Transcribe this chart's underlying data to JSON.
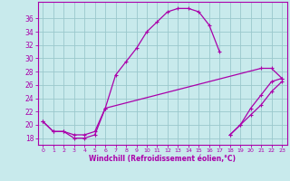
{
  "xlabel": "Windchill (Refroidissement éolien,°C)",
  "xlim": [
    -0.5,
    23.5
  ],
  "ylim": [
    17.0,
    38.5
  ],
  "yticks": [
    18,
    20,
    22,
    24,
    26,
    28,
    30,
    32,
    34,
    36
  ],
  "xticks": [
    0,
    1,
    2,
    3,
    4,
    5,
    6,
    7,
    8,
    9,
    10,
    11,
    12,
    13,
    14,
    15,
    16,
    17,
    18,
    19,
    20,
    21,
    22,
    23
  ],
  "background_color": "#c8eaec",
  "grid_color": "#9ac8cc",
  "line_color": "#aa00aa",
  "series": [
    [
      20.5,
      19.0,
      19.0,
      18.0,
      18.0,
      18.5,
      22.5,
      27.5,
      29.5,
      31.5,
      34.0,
      35.5,
      37.0,
      37.5,
      37.5,
      37.0,
      35.0,
      31.0,
      null,
      null,
      null,
      null,
      null,
      null
    ],
    [
      20.5,
      19.0,
      19.0,
      18.5,
      18.5,
      19.0,
      22.5,
      null,
      null,
      null,
      null,
      null,
      null,
      null,
      null,
      null,
      null,
      null,
      null,
      null,
      null,
      28.5,
      28.5,
      27.0
    ],
    [
      null,
      null,
      null,
      null,
      null,
      null,
      null,
      null,
      null,
      null,
      null,
      null,
      null,
      null,
      null,
      null,
      null,
      null,
      18.5,
      20.0,
      22.5,
      24.5,
      26.5,
      27.0
    ],
    [
      null,
      null,
      null,
      null,
      null,
      null,
      null,
      null,
      null,
      null,
      null,
      null,
      null,
      null,
      null,
      null,
      null,
      null,
      18.5,
      20.0,
      21.5,
      23.0,
      25.0,
      26.5
    ]
  ]
}
